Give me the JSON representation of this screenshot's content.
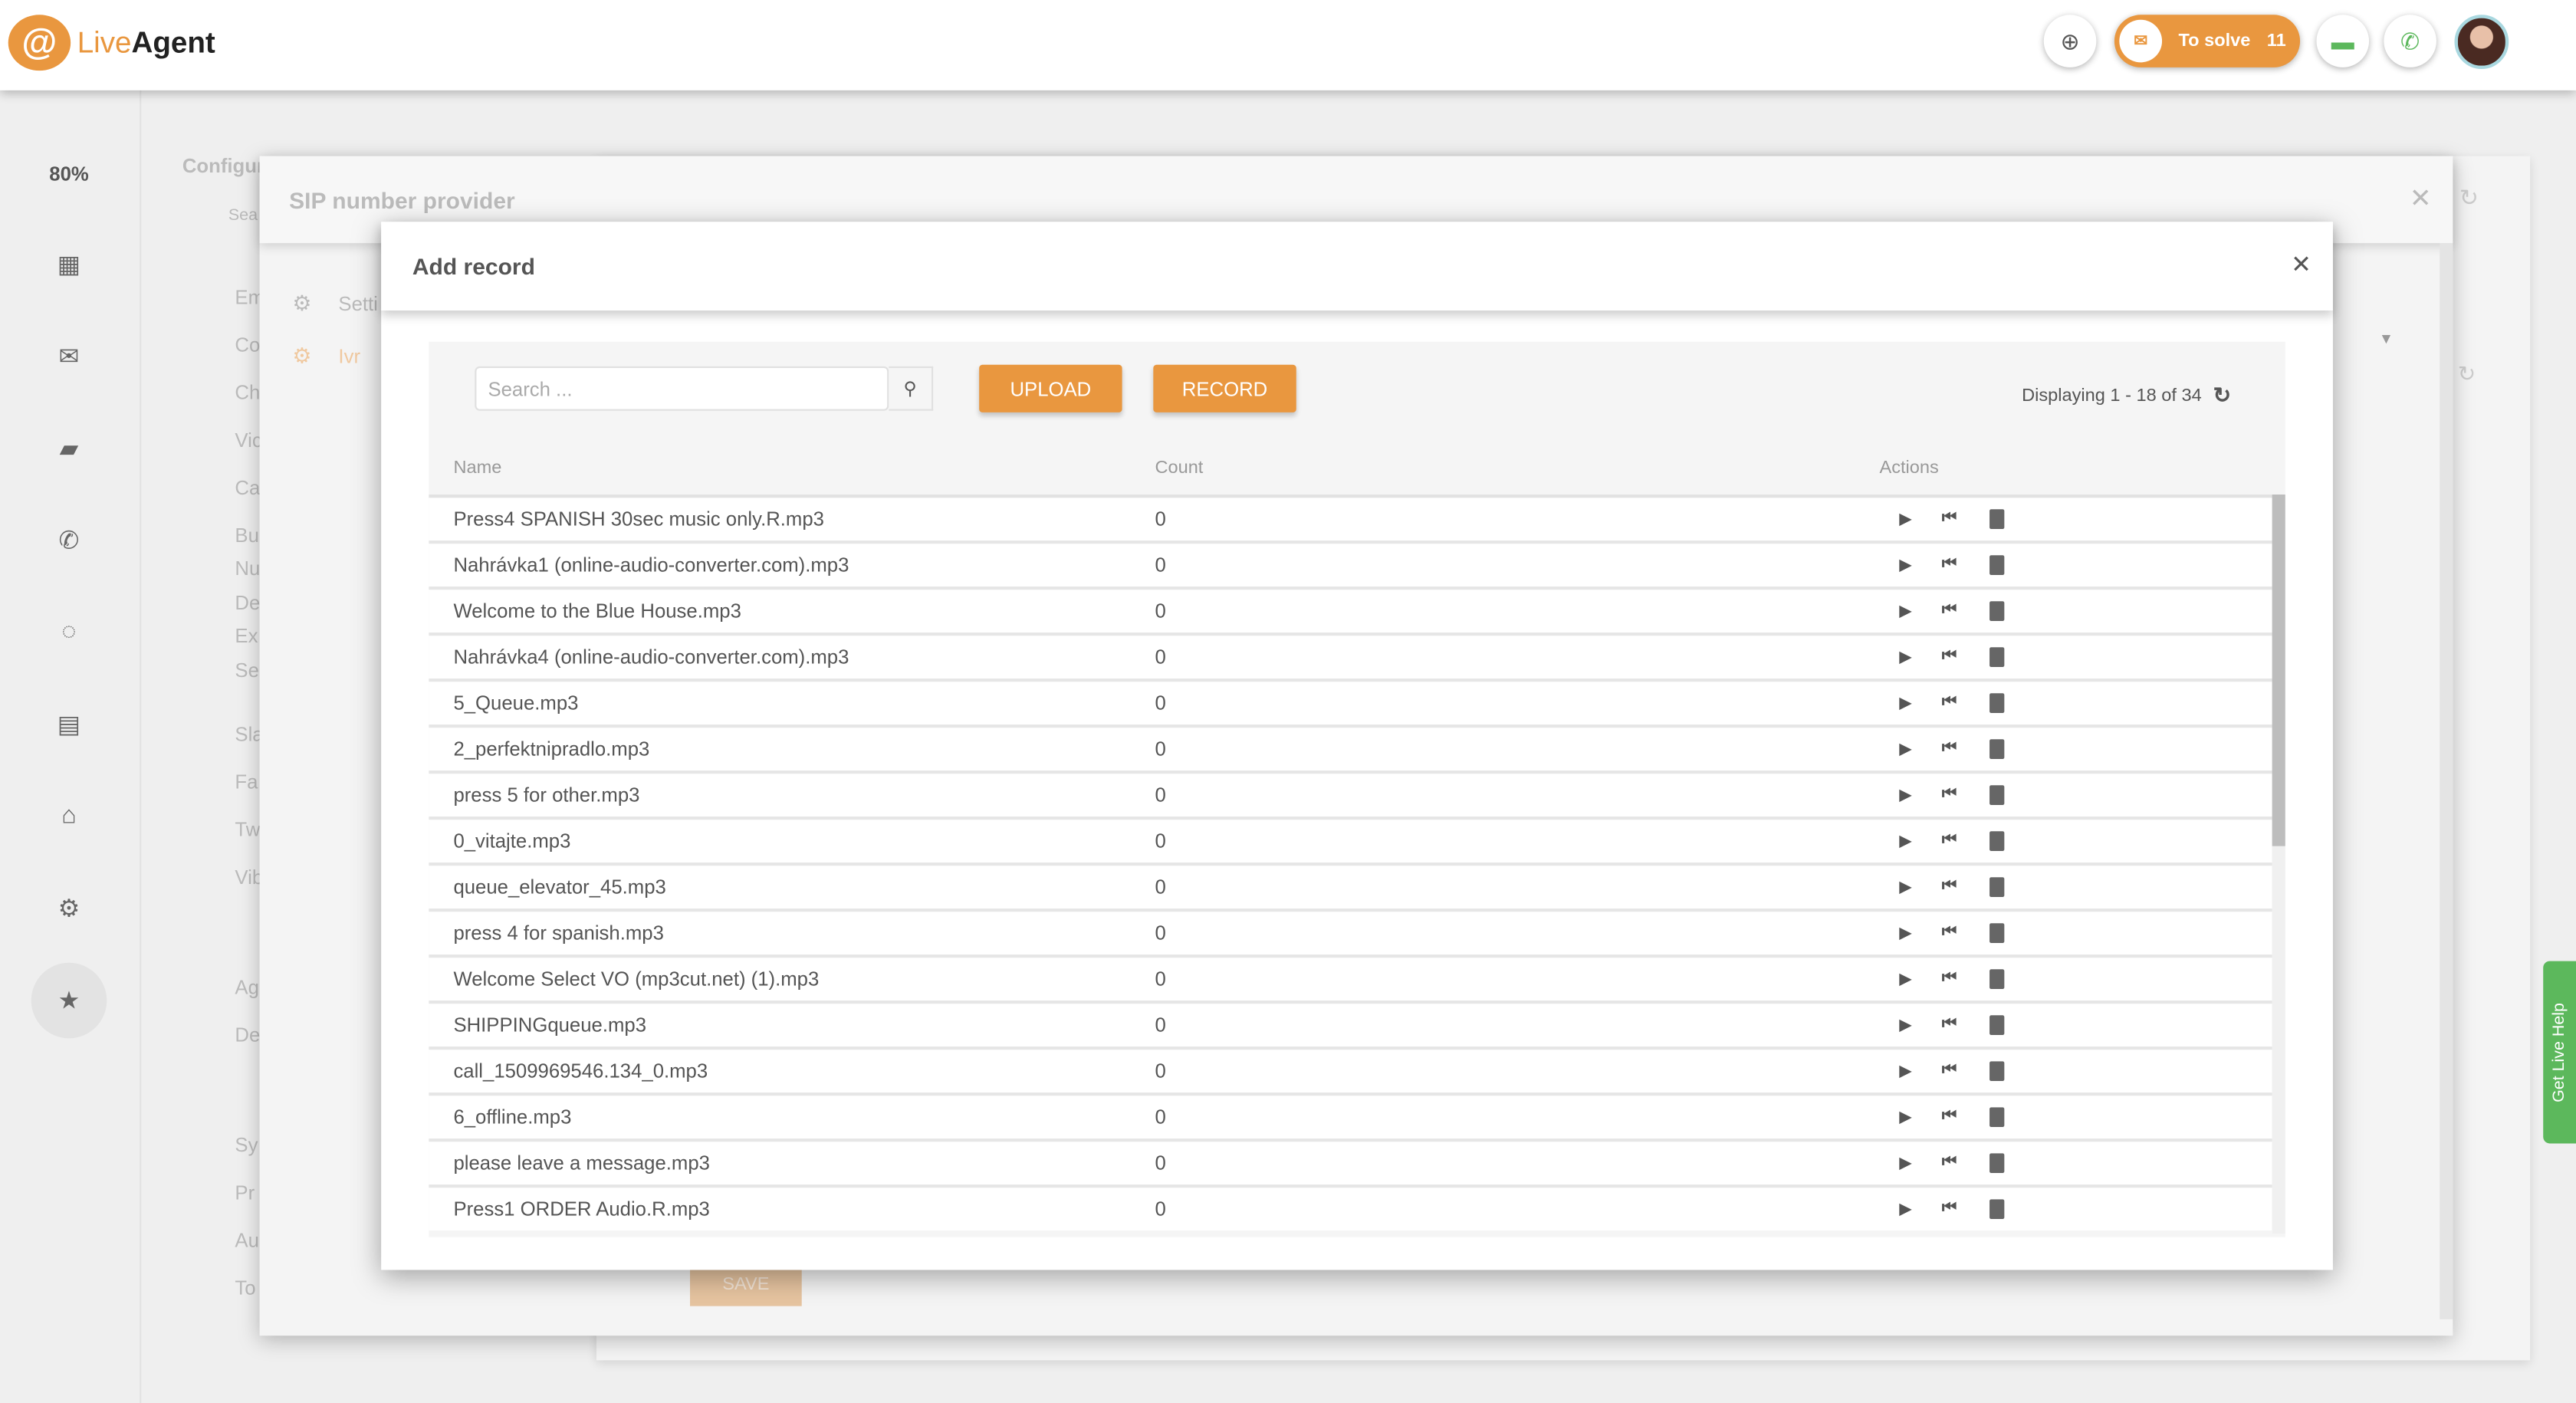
{
  "app": {
    "logo_text_1": "Live",
    "logo_text_2": "Agent",
    "zoom": "80%"
  },
  "topbar": {
    "to_solve_label": "To solve",
    "to_solve_count": "11",
    "accent": "#e9973f"
  },
  "config_menu": {
    "title": "Configur",
    "search": "Sea",
    "items": [
      "Em",
      "Co",
      "Ch",
      "Vic",
      "Ca",
      "Bu",
      "Nu",
      "De",
      "Ex",
      "Se",
      "Sla",
      "Fa",
      "Tw",
      "Vib",
      "Ag",
      "De",
      "Sy",
      "Pr",
      "Au",
      "To"
    ]
  },
  "sip_dialog": {
    "title": "SIP number provider",
    "side_items": [
      "Setti",
      "Ivr"
    ],
    "save_label": "SAVE"
  },
  "add_record": {
    "title": "Add record",
    "search_placeholder": "Search ...",
    "upload_label": "UPLOAD",
    "record_label": "RECORD",
    "displaying": "Displaying 1 - 18 of 34",
    "columns": {
      "name": "Name",
      "count": "Count",
      "actions": "Actions"
    },
    "rows": [
      {
        "name": "Press4 SPANISH 30sec music only.R.mp3",
        "count": "0"
      },
      {
        "name": "Nahrávka1 (online-audio-converter.com).mp3",
        "count": "0"
      },
      {
        "name": "Welcome to the Blue House.mp3",
        "count": "0"
      },
      {
        "name": "Nahrávka4 (online-audio-converter.com).mp3",
        "count": "0"
      },
      {
        "name": "5_Queue.mp3",
        "count": "0"
      },
      {
        "name": "2_perfektnipradlo.mp3",
        "count": "0"
      },
      {
        "name": "press 5 for other.mp3",
        "count": "0"
      },
      {
        "name": "0_vitajte.mp3",
        "count": "0"
      },
      {
        "name": "queue_elevator_45.mp3",
        "count": "0"
      },
      {
        "name": "press 4 for spanish.mp3",
        "count": "0"
      },
      {
        "name": "Welcome Select VO (mp3cut.net) (1).mp3",
        "count": "0"
      },
      {
        "name": "SHIPPINGqueue.mp3",
        "count": "0"
      },
      {
        "name": "call_1509969546.134_0.mp3",
        "count": "0"
      },
      {
        "name": "6_offline.mp3",
        "count": "0"
      },
      {
        "name": "please leave a message.mp3",
        "count": "0"
      },
      {
        "name": "Press1 ORDER Audio.R.mp3",
        "count": "0"
      }
    ]
  },
  "live_help": {
    "label": "Get Live Help",
    "color": "#5cb85c"
  }
}
